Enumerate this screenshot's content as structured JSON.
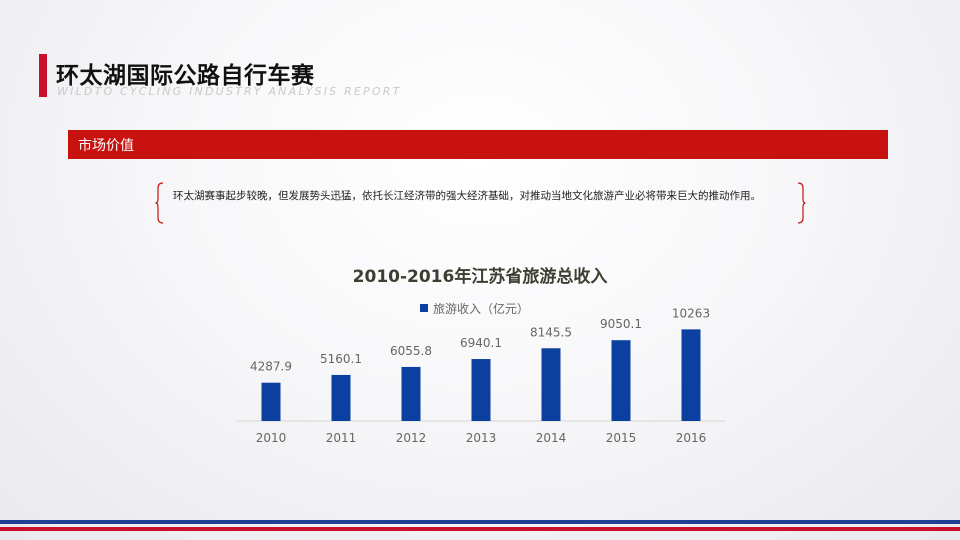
{
  "header": {
    "title": "环太湖国际公路自行车赛",
    "subtitle": "WILDTO CYCLING INDUSTRY ANALYSIS REPORT"
  },
  "section": {
    "label": "市场价值"
  },
  "quote": {
    "text": "环太湖赛事起步较晚，但发展势头迅猛，依托长江经济带的强大经济基础，对推动当地文化旅游产业必将带来巨大的推动作用。"
  },
  "colors": {
    "accent_red": "#c8120f",
    "bar_blue": "#0b3fa0",
    "footer_blue": "#1d3f95"
  },
  "chart_data": {
    "type": "bar",
    "title": "2010-2016年江苏省旅游总收入",
    "categories": [
      "2010",
      "2011",
      "2012",
      "2013",
      "2014",
      "2015",
      "2016"
    ],
    "series": [
      {
        "name": "旅游收入（亿元）",
        "values": [
          4287.9,
          5160.1,
          6055.8,
          6940.1,
          8145.5,
          9050.1,
          10263
        ],
        "labels": [
          "4287.9",
          "5160.1",
          "6055.8",
          "6940.1",
          "8145.5",
          "9050.1",
          "10263"
        ]
      }
    ],
    "ylim": [
      0,
      14000
    ],
    "legend": "top-center",
    "grid": false
  }
}
